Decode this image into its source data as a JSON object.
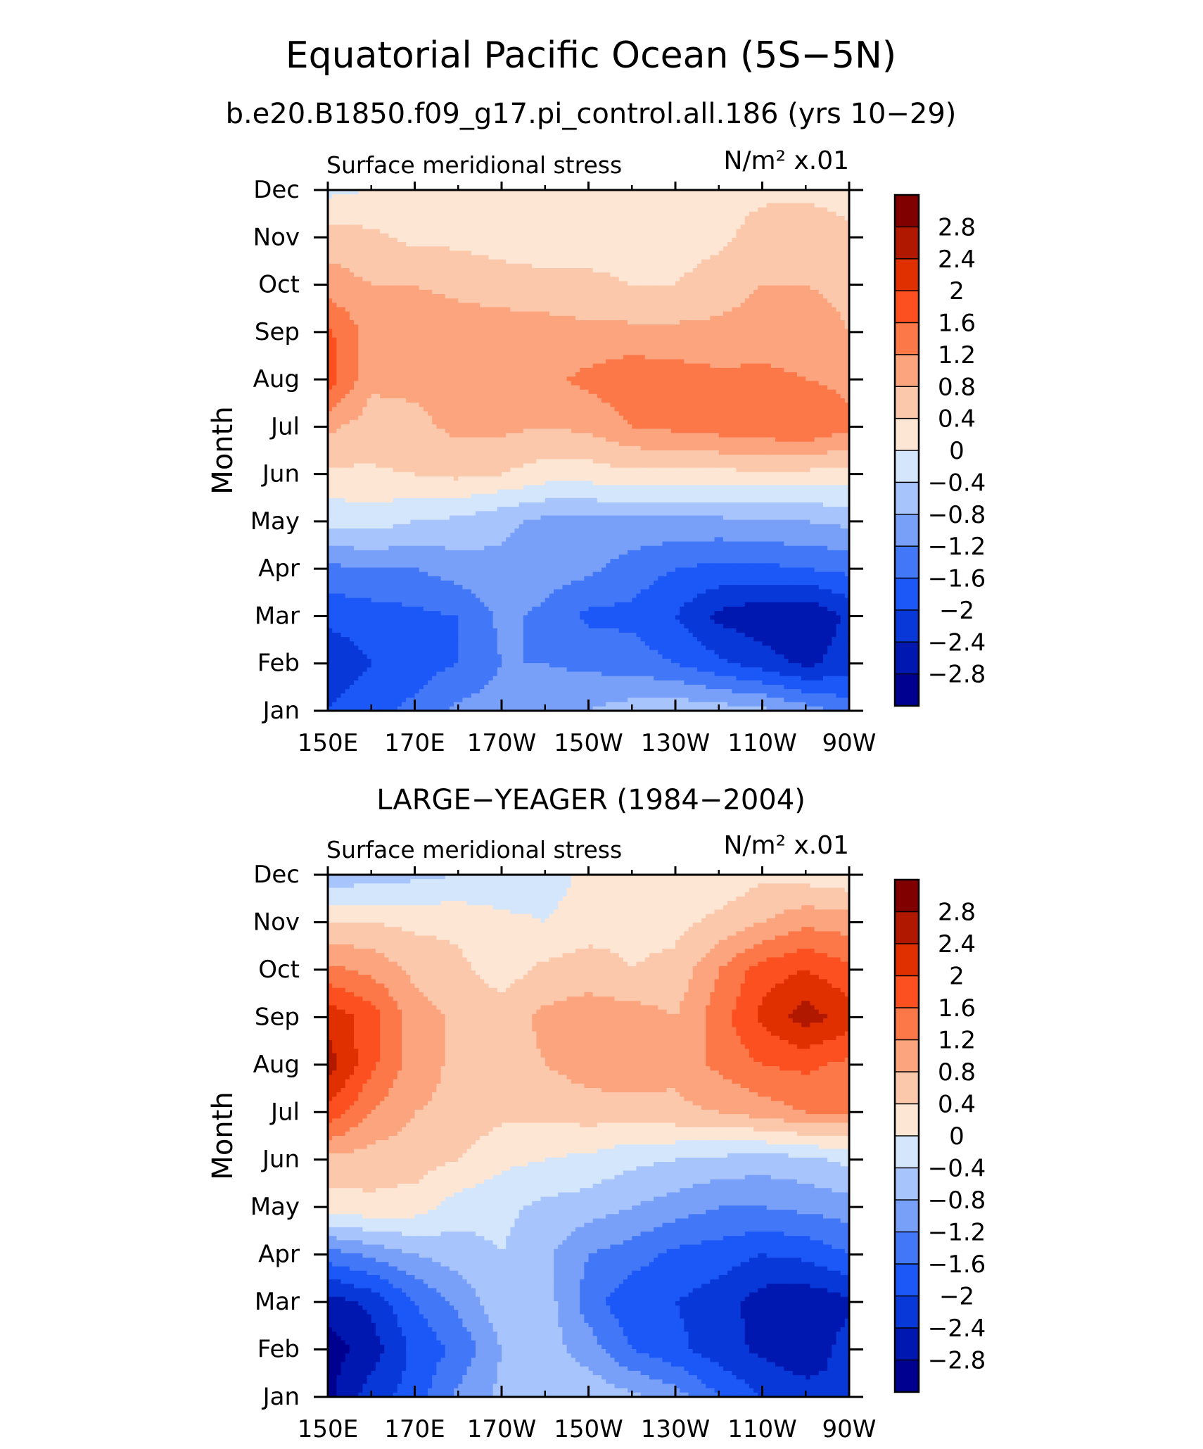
{
  "figure": {
    "title": "Equatorial Pacific Ocean (5S−5N)",
    "subtitle": "b.e20.B1850.f09_g17.pi_control.all.186 (yrs 10−29)"
  },
  "chart_data": [
    {
      "type": "heatmap",
      "title": "",
      "left_label": "Surface meridional stress",
      "units_label": "N/m² x.01",
      "xlabel": "",
      "ylabel": "Month",
      "x_ticks": [
        "150E",
        "170E",
        "170W",
        "150W",
        "130W",
        "110W",
        "90W"
      ],
      "y_ticks": [
        "Jan",
        "Feb",
        "Mar",
        "Apr",
        "May",
        "Jun",
        "Jul",
        "Aug",
        "Sep",
        "Oct",
        "Nov",
        "Dec"
      ],
      "contour_levels": [
        -2.8,
        -2.4,
        -2,
        -1.6,
        -1.2,
        -0.8,
        -0.4,
        0,
        0.4,
        0.8,
        1.2,
        1.6,
        2,
        2.4,
        2.8
      ],
      "legend_labels": [
        "2.8",
        "2.4",
        "2",
        "1.6",
        "1.2",
        "0.8",
        "0.4",
        "0",
        "−0.4",
        "−0.8",
        "−1.2",
        "−1.6",
        "−2",
        "−2.4",
        "−2.8"
      ],
      "colors": [
        "#000090",
        "#0018b0",
        "#0838d8",
        "#1c58f8",
        "#4278f8",
        "#78a0f8",
        "#a8c4fc",
        "#d4e6fc",
        "#fee6d4",
        "#fcc8ac",
        "#fca47e",
        "#fc7848",
        "#fc5020",
        "#e03000",
        "#b01800",
        "#800000"
      ],
      "legend_placement": "right",
      "x_lon": [
        150,
        160,
        170,
        180,
        190,
        200,
        210,
        220,
        230,
        240,
        250,
        260,
        270
      ],
      "values": [
        [
          -2.0,
          -1.7,
          -1.5,
          -1.1,
          -1.0,
          -0.9,
          -0.8,
          -0.6,
          -0.5,
          -0.6,
          -0.7,
          -1.0,
          -1.4
        ],
        [
          -2.3,
          -2.0,
          -1.8,
          -1.6,
          -1.2,
          -1.2,
          -1.3,
          -1.4,
          -1.6,
          -1.9,
          -2.2,
          -2.5,
          -2.2
        ],
        [
          -1.9,
          -1.8,
          -1.7,
          -1.6,
          -1.1,
          -1.3,
          -1.7,
          -1.7,
          -2.0,
          -2.5,
          -2.7,
          -2.8,
          -2.3
        ],
        [
          -1.3,
          -1.2,
          -1.2,
          -1.0,
          -0.9,
          -1.0,
          -1.1,
          -1.4,
          -1.6,
          -1.7,
          -1.7,
          -1.6,
          -1.5
        ],
        [
          -0.3,
          -0.2,
          -0.4,
          -0.5,
          -0.7,
          -0.9,
          -0.9,
          -0.9,
          -0.9,
          -0.9,
          -0.8,
          -0.8,
          -0.7
        ],
        [
          0.3,
          0.35,
          0.4,
          0.5,
          0.4,
          0.2,
          0.2,
          0.3,
          0.3,
          0.3,
          0.3,
          0.3,
          0.2
        ],
        [
          0.9,
          0.6,
          0.7,
          0.9,
          0.9,
          0.8,
          0.9,
          1.2,
          1.3,
          1.4,
          1.5,
          1.6,
          1.3
        ],
        [
          1.8,
          0.9,
          0.9,
          0.9,
          1.0,
          1.1,
          1.3,
          1.5,
          1.4,
          1.3,
          1.3,
          1.2,
          1.1
        ],
        [
          1.7,
          1.0,
          1.0,
          1.0,
          1.0,
          1.0,
          0.9,
          0.9,
          0.9,
          0.9,
          1.0,
          1.0,
          0.8
        ],
        [
          1.0,
          0.8,
          0.8,
          0.7,
          0.6,
          0.5,
          0.5,
          0.4,
          0.4,
          0.6,
          0.8,
          0.8,
          0.7
        ],
        [
          0.6,
          0.5,
          0.3,
          0.3,
          0.2,
          0.2,
          0.2,
          0.2,
          0.2,
          0.3,
          0.6,
          0.7,
          0.5
        ],
        [
          -0.1,
          0.0,
          0.1,
          0.1,
          0.1,
          0.0,
          0.1,
          0.1,
          0.1,
          0.2,
          0.3,
          0.3,
          0.2
        ]
      ]
    },
    {
      "type": "heatmap",
      "title": "LARGE−YEAGER (1984−2004)",
      "left_label": "Surface meridional stress",
      "units_label": "N/m² x.01",
      "xlabel": "",
      "ylabel": "Month",
      "x_ticks": [
        "150E",
        "170E",
        "170W",
        "150W",
        "130W",
        "110W",
        "90W"
      ],
      "y_ticks": [
        "Jan",
        "Feb",
        "Mar",
        "Apr",
        "May",
        "Jun",
        "Jul",
        "Aug",
        "Sep",
        "Oct",
        "Nov",
        "Dec"
      ],
      "contour_levels": [
        -2.8,
        -2.4,
        -2,
        -1.6,
        -1.2,
        -0.8,
        -0.4,
        0,
        0.4,
        0.8,
        1.2,
        1.6,
        2,
        2.4,
        2.8
      ],
      "legend_labels": [
        "2.8",
        "2.4",
        "2",
        "1.6",
        "1.2",
        "0.8",
        "0.4",
        "0",
        "−0.4",
        "−0.8",
        "−1.2",
        "−1.6",
        "−2",
        "−2.4",
        "−2.8"
      ],
      "colors": [
        "#000090",
        "#0018b0",
        "#0838d8",
        "#1c58f8",
        "#4278f8",
        "#78a0f8",
        "#a8c4fc",
        "#d4e6fc",
        "#fee6d4",
        "#fcc8ac",
        "#fca47e",
        "#fc7848",
        "#fc5020",
        "#e03000",
        "#b01800",
        "#800000"
      ],
      "legend_placement": "right",
      "x_lon": [
        150,
        160,
        170,
        180,
        190,
        200,
        210,
        220,
        230,
        240,
        250,
        260,
        270
      ],
      "values": [
        [
          -2.9,
          -2.2,
          -1.8,
          -1.1,
          -0.7,
          -0.6,
          -0.5,
          -0.7,
          -1.0,
          -1.6,
          -2.0,
          -2.2,
          -2.4
        ],
        [
          -3.0,
          -2.6,
          -1.9,
          -1.5,
          -0.8,
          -0.6,
          -1.0,
          -1.6,
          -1.9,
          -2.2,
          -2.5,
          -2.7,
          -2.2
        ],
        [
          -2.6,
          -2.3,
          -1.6,
          -1.1,
          -0.5,
          -0.6,
          -1.4,
          -1.9,
          -2.0,
          -2.2,
          -2.6,
          -2.7,
          -2.5
        ],
        [
          -1.4,
          -1.1,
          -0.8,
          -0.6,
          -0.4,
          -0.7,
          -1.2,
          -1.4,
          -1.7,
          -1.8,
          -2.0,
          -1.9,
          -1.6
        ],
        [
          0.2,
          0.3,
          0.2,
          -0.2,
          -0.3,
          -0.5,
          -0.6,
          -0.8,
          -1.0,
          -1.2,
          -1.2,
          -1.1,
          -1.0
        ],
        [
          0.7,
          0.6,
          0.6,
          0.4,
          0.1,
          0.0,
          -0.1,
          -0.3,
          -0.4,
          -0.5,
          -0.6,
          -0.5,
          -0.3
        ],
        [
          1.9,
          1.2,
          0.8,
          0.7,
          0.5,
          0.5,
          0.6,
          0.6,
          0.7,
          0.8,
          1.0,
          1.2,
          1.2
        ],
        [
          2.6,
          1.7,
          1.0,
          0.7,
          0.6,
          0.8,
          1.0,
          1.1,
          0.9,
          1.3,
          1.6,
          1.7,
          1.5
        ],
        [
          2.3,
          1.8,
          1.0,
          0.7,
          0.6,
          0.9,
          1.0,
          1.0,
          0.8,
          1.4,
          2.1,
          2.6,
          2.2
        ],
        [
          1.3,
          1.1,
          0.7,
          0.5,
          0.2,
          0.5,
          0.6,
          0.4,
          0.5,
          1.2,
          1.8,
          2.0,
          1.7
        ],
        [
          0.4,
          0.4,
          0.3,
          0.3,
          0.1,
          0.0,
          0.2,
          0.3,
          0.3,
          0.5,
          0.8,
          1.1,
          1.0
        ],
        [
          -0.7,
          -0.6,
          -0.5,
          -0.4,
          -0.3,
          -0.2,
          0.1,
          0.1,
          0.1,
          0.1,
          0.3,
          0.2,
          0.1
        ]
      ]
    }
  ]
}
